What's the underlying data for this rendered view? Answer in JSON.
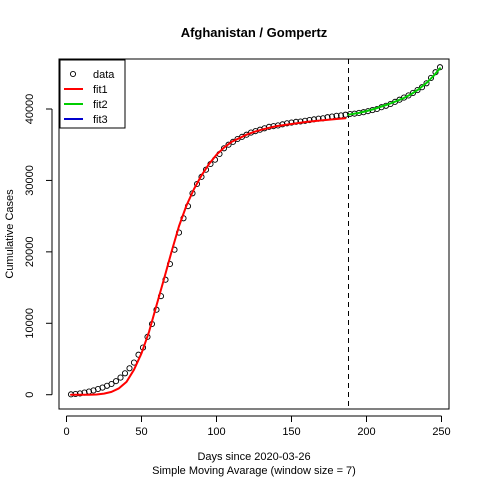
{
  "chart_data": {
    "type": "line",
    "title": "Afghanistan / Gompertz",
    "xlabel": "Days since 2020-03-26",
    "xlabel_sub": "Simple Moving Avarage (window size = 7)",
    "ylabel": "Cumulative Cases",
    "xlim": [
      -5,
      255
    ],
    "ylim": [
      -2000,
      47000
    ],
    "x_ticks": [
      0,
      50,
      100,
      150,
      200,
      250
    ],
    "y_ticks": [
      0,
      10000,
      20000,
      30000,
      40000
    ],
    "vline_x": 188,
    "legend": {
      "position": "top-left",
      "entries": [
        {
          "label": "data",
          "color": "#000000",
          "symbol": "circle"
        },
        {
          "label": "fit1",
          "color": "#ff0000",
          "symbol": "line"
        },
        {
          "label": "fit2",
          "color": "#00cd00",
          "symbol": "line"
        },
        {
          "label": "fit3",
          "color": "#0000cd",
          "symbol": "line"
        }
      ]
    },
    "series": [
      {
        "name": "data",
        "style": "points",
        "color": "#000000",
        "x": [
          3,
          6,
          9,
          12,
          15,
          18,
          21,
          24,
          27,
          30,
          33,
          36,
          39,
          42,
          45,
          48,
          51,
          54,
          57,
          60,
          63,
          66,
          69,
          72,
          75,
          78,
          81,
          84,
          87,
          90,
          93,
          96,
          99,
          102,
          105,
          108,
          111,
          114,
          117,
          120,
          123,
          126,
          129,
          132,
          135,
          138,
          141,
          144,
          147,
          150,
          153,
          156,
          159,
          162,
          165,
          168,
          171,
          174,
          177,
          180,
          183,
          186,
          189,
          192,
          195,
          198,
          201,
          204,
          207,
          210,
          213,
          216,
          219,
          222,
          225,
          228,
          231,
          234,
          237,
          240,
          243,
          246,
          249
        ],
        "y": [
          50,
          100,
          180,
          300,
          450,
          600,
          800,
          1000,
          1250,
          1500,
          1900,
          2400,
          3000,
          3700,
          4500,
          5600,
          6600,
          8100,
          9900,
          11900,
          13800,
          16100,
          18300,
          20300,
          22700,
          24700,
          26400,
          28200,
          29500,
          30500,
          31500,
          32300,
          32900,
          33700,
          34500,
          35000,
          35400,
          35800,
          36100,
          36400,
          36700,
          36900,
          37100,
          37300,
          37500,
          37600,
          37700,
          37850,
          38000,
          38100,
          38200,
          38250,
          38350,
          38450,
          38550,
          38650,
          38700,
          38850,
          38950,
          39050,
          39100,
          39200,
          39300,
          39350,
          39450,
          39550,
          39700,
          39850,
          40000,
          40250,
          40450,
          40700,
          41000,
          41300,
          41600,
          41900,
          42250,
          42650,
          43050,
          43600,
          44350,
          45150,
          45850
        ]
      },
      {
        "name": "fit1",
        "style": "line",
        "color": "#ff0000",
        "x": [
          3,
          10,
          15,
          20,
          25,
          30,
          35,
          40,
          45,
          50,
          55,
          60,
          65,
          70,
          75,
          80,
          85,
          90,
          95,
          100,
          105,
          110,
          115,
          120,
          125,
          130,
          140,
          150,
          160,
          170,
          180,
          186
        ],
        "y": [
          0,
          0,
          0,
          30,
          150,
          400,
          900,
          1800,
          3500,
          5800,
          8800,
          12500,
          16200,
          20000,
          23600,
          26500,
          28800,
          30700,
          32300,
          33600,
          34600,
          35400,
          35900,
          36400,
          36800,
          37100,
          37600,
          37900,
          38200,
          38400,
          38600,
          38700
        ]
      },
      {
        "name": "fit2",
        "style": "line",
        "color": "#00cd00",
        "x": [
          188,
          195,
          200,
          205,
          210,
          215,
          220,
          225,
          230,
          235,
          240,
          245,
          249
        ],
        "y": [
          39200,
          39450,
          39700,
          40000,
          40350,
          40700,
          41100,
          41550,
          42100,
          42800,
          43650,
          44700,
          45700
        ]
      },
      {
        "name": "fit3",
        "style": "line",
        "color": "#0000cd",
        "x": [],
        "y": []
      }
    ]
  }
}
